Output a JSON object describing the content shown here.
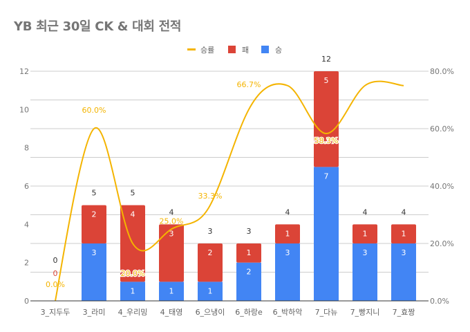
{
  "title": "YB 최근 30일 CK & 대회 전적",
  "colors": {
    "win": "#4285f4",
    "loss": "#db4437",
    "rate": "#f4b400",
    "grid": "#cccccc",
    "axis": "#333333"
  },
  "chart_data": {
    "type": "bar",
    "stacked": true,
    "title": "YB 최근 30일 CK & 대회 전적",
    "categories": [
      "3_지두두",
      "3_라미",
      "4_우리밍",
      "4_태영",
      "6_으냉이",
      "6_하랑e",
      "6_박하악",
      "7_다뉴",
      "7_빵지니",
      "7_효짱"
    ],
    "series": [
      {
        "name": "승",
        "type": "bar",
        "axis": "left",
        "values": [
          0,
          3,
          1,
          1,
          1,
          2,
          3,
          7,
          3,
          3
        ]
      },
      {
        "name": "패",
        "type": "bar",
        "axis": "left",
        "values": [
          0,
          2,
          4,
          3,
          2,
          1,
          1,
          5,
          1,
          1
        ]
      },
      {
        "name": "승률",
        "type": "line",
        "axis": "right",
        "smooth": true,
        "values": [
          0.0,
          60.0,
          20.0,
          25.0,
          33.3,
          66.7,
          75.0,
          58.3,
          75.0,
          75.0
        ]
      }
    ],
    "totals": [
      0,
      5,
      5,
      4,
      3,
      3,
      4,
      12,
      4,
      4
    ],
    "rate_labels": [
      "0.0%",
      "60.0%",
      "20.0%",
      "25.0%",
      "33.3%",
      "66.7%",
      null,
      "58.3%",
      null,
      null
    ],
    "win_labels": [
      null,
      "3",
      "1",
      "1",
      "1",
      "2",
      "3",
      "7",
      "3",
      "3"
    ],
    "loss_labels": [
      "0",
      "2",
      "4",
      "3",
      "2",
      "1",
      "1",
      "5",
      "1",
      "1"
    ],
    "left_axis": {
      "min": 0,
      "max": 12,
      "ticks": [
        "0",
        "2",
        "4",
        "6",
        "8",
        "10",
        "12"
      ]
    },
    "right_axis": {
      "min": 0,
      "max": 80,
      "ticks": [
        "0.0%",
        "20.0%",
        "40.0%",
        "60.0%",
        "80.0%"
      ]
    },
    "legend": {
      "position": "top",
      "entries": [
        "승률",
        "패",
        "승"
      ]
    },
    "grid": true,
    "xlabel": "",
    "ylabel": ""
  }
}
